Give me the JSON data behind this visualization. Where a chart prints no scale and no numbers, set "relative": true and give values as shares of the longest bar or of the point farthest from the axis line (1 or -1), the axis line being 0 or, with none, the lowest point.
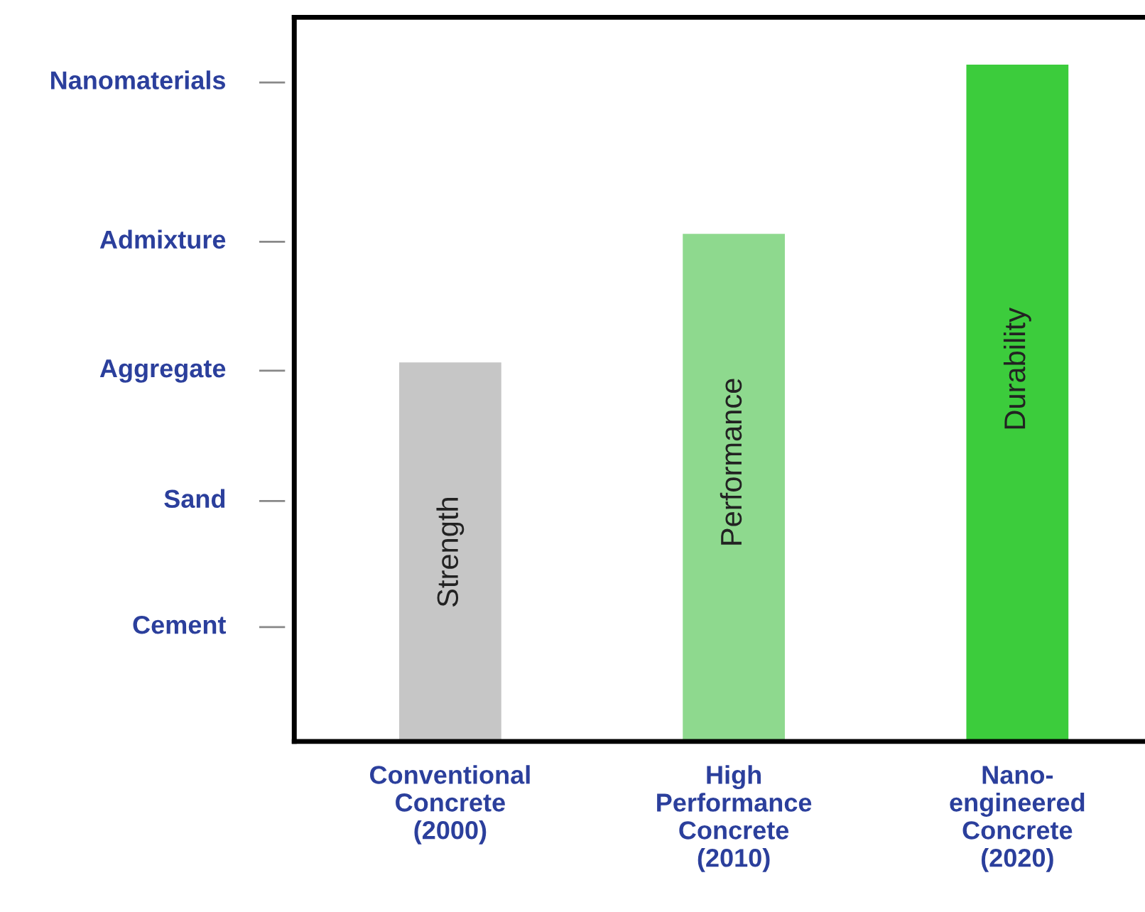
{
  "chart_data": {
    "type": "bar",
    "relative": true,
    "categories": [
      "Conventional\nConcrete\n(2000)",
      "High\nPerformance\nConcrete\n(2010)",
      "Nano-\nengineered\nConcrete\n(2020)"
    ],
    "values": [
      0.56,
      0.75,
      1
    ],
    "colors": [
      "#c6c6c6",
      "#8ed98e",
      "#3ccc3c"
    ],
    "annotations": [
      "Cement",
      "Sand",
      "Aggregate",
      "Admixture",
      "Nanomaterials",
      "Strength",
      "Performance",
      "Durability"
    ],
    "grid": false,
    "legend": false
  }
}
